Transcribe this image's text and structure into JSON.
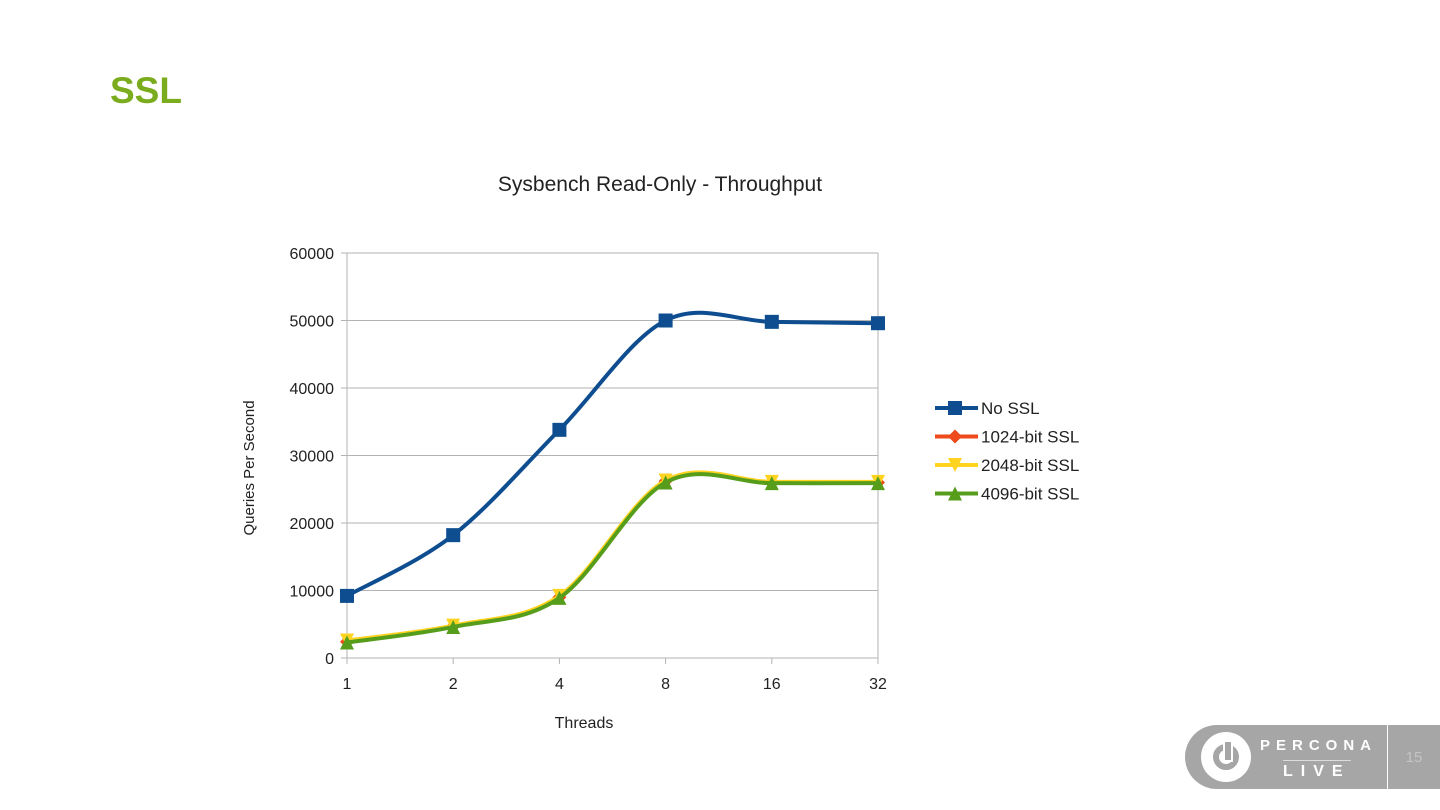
{
  "slide": {
    "title": "SSL",
    "page_number": "15",
    "logo_top": "PERCONA",
    "logo_bottom": "LIVE"
  },
  "chart_data": {
    "type": "line",
    "title": "Sysbench Read-Only - Throughput",
    "xlabel": "Threads",
    "ylabel": "Queries Per Second",
    "categories": [
      "1",
      "2",
      "4",
      "8",
      "16",
      "32"
    ],
    "ylim": [
      0,
      60000
    ],
    "yticks": [
      "0",
      "10000",
      "20000",
      "30000",
      "40000",
      "50000",
      "60000"
    ],
    "grid": true,
    "legend": "right",
    "series": [
      {
        "name": "No SSL",
        "color": "#0e4d8f",
        "marker": "square",
        "values": [
          9200,
          18200,
          33800,
          50000,
          49800,
          49600
        ]
      },
      {
        "name": "1024-bit SSL",
        "color": "#ee4a1c",
        "marker": "diamond",
        "values": [
          2400,
          4700,
          9000,
          26200,
          26000,
          26000
        ]
      },
      {
        "name": "2048-bit SSL",
        "color": "#ffd320",
        "marker": "triangle-down",
        "values": [
          2600,
          4800,
          9200,
          26300,
          26100,
          26100
        ]
      },
      {
        "name": "4096-bit SSL",
        "color": "#579d1c",
        "marker": "triangle",
        "values": [
          2300,
          4600,
          8900,
          26000,
          25900,
          25900
        ]
      }
    ]
  }
}
